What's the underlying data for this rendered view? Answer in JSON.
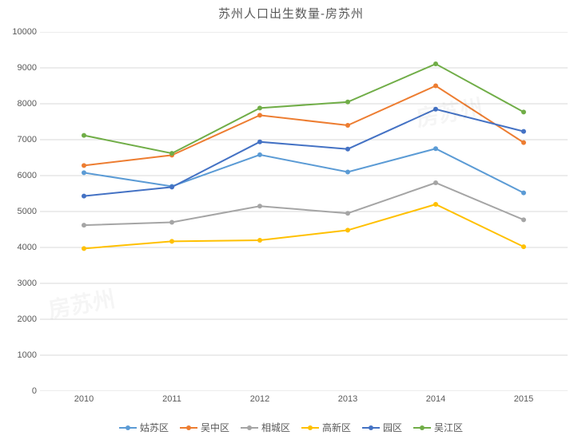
{
  "chart": {
    "type": "line",
    "title": "苏州人口出生数量-房苏州",
    "title_fontsize": 15,
    "title_color": "#595959",
    "background_color": "#ffffff",
    "grid_color": "#d9d9d9",
    "axis_font_color": "#595959",
    "axis_fontsize": 11,
    "legend_fontsize": 12,
    "x_labels": [
      "2010",
      "2011",
      "2012",
      "2013",
      "2014",
      "2015"
    ],
    "ylim": [
      0,
      10000
    ],
    "ytick_step": 1000,
    "line_width": 2,
    "marker_size": 6,
    "series": [
      {
        "name": "姑苏区",
        "color": "#5b9bd5",
        "values": [
          6080,
          5700,
          6580,
          6100,
          6750,
          5520
        ]
      },
      {
        "name": "吴中区",
        "color": "#ed7d31",
        "values": [
          6280,
          6570,
          7680,
          7400,
          8500,
          6920
        ]
      },
      {
        "name": "相城区",
        "color": "#a5a5a5",
        "values": [
          4620,
          4700,
          5150,
          4950,
          5800,
          4770
        ]
      },
      {
        "name": "高新区",
        "color": "#ffc000",
        "values": [
          3970,
          4170,
          4200,
          4480,
          5200,
          4020
        ]
      },
      {
        "name": "园区",
        "color": "#4472c4",
        "values": [
          5430,
          5680,
          6940,
          6740,
          7850,
          7230
        ]
      },
      {
        "name": "吴江区",
        "color": "#70ad47",
        "values": [
          7120,
          6620,
          7880,
          8050,
          9110,
          7770
        ]
      }
    ]
  }
}
